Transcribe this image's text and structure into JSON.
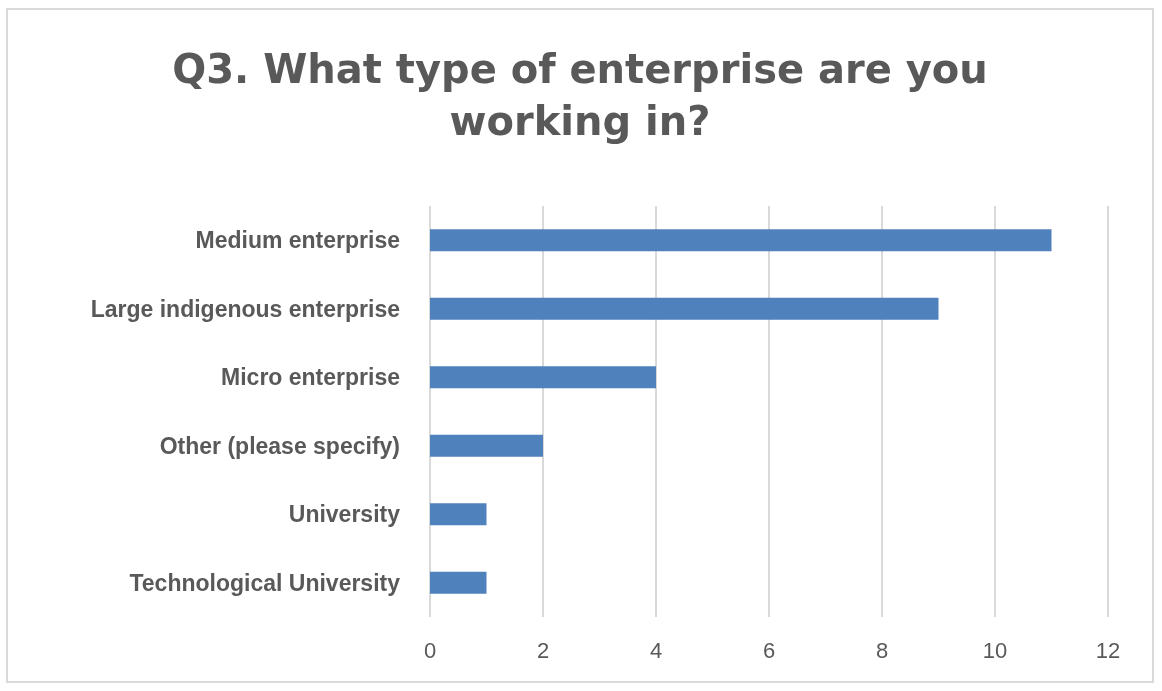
{
  "chart_data": {
    "type": "bar",
    "orientation": "horizontal",
    "title": "Q3. What type of enterprise are you\nworking in?",
    "categories": [
      "Medium enterprise",
      "Large indigenous enterprise",
      "Micro enterprise",
      "Other (please specify)",
      "University",
      "Technological University"
    ],
    "values": [
      11,
      9,
      4,
      2,
      1,
      1
    ],
    "color": "#4f81bd",
    "xlim": [
      0,
      12
    ],
    "xticks": [
      0,
      2,
      4,
      6,
      8,
      10,
      12
    ],
    "grid": "x"
  }
}
